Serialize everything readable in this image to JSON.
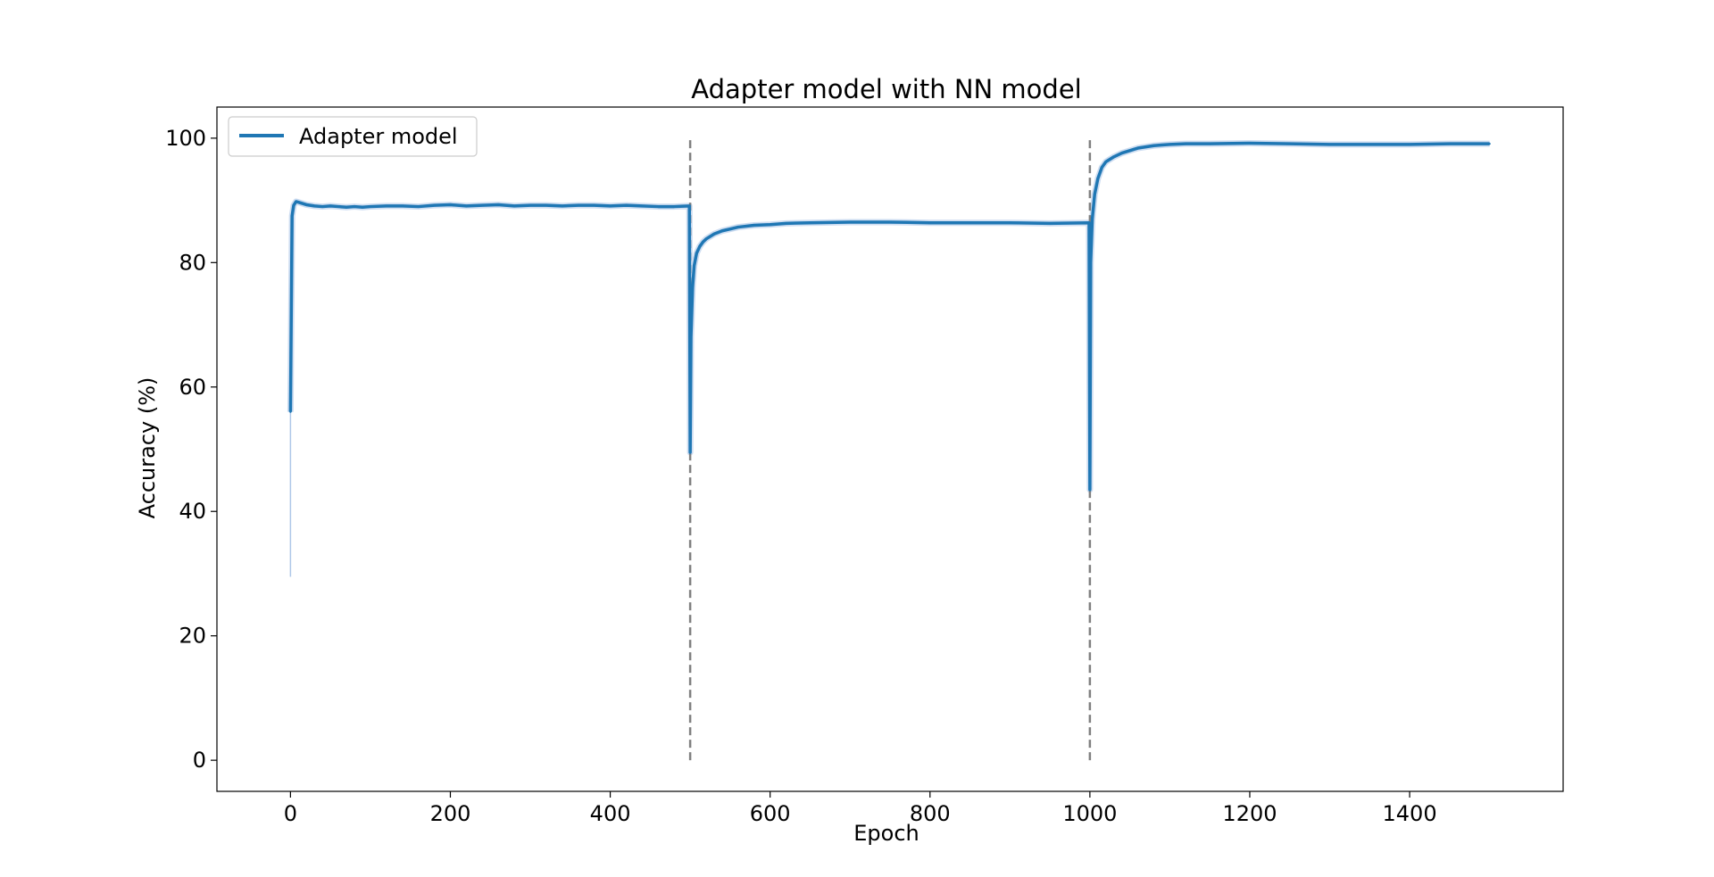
{
  "chart_data": {
    "type": "line",
    "title": "Adapter model with NN model",
    "xlabel": "Epoch",
    "ylabel": "Accuracy (%)",
    "xlim": [
      -92,
      1592
    ],
    "ylim": [
      -5,
      105
    ],
    "xticks": [
      0,
      200,
      400,
      600,
      800,
      1000,
      1200,
      1400
    ],
    "yticks": [
      0,
      20,
      40,
      60,
      80,
      100
    ],
    "grid": false,
    "legend": {
      "position": "top-left",
      "entries": [
        "Adapter model"
      ]
    },
    "colors": {
      "line": "#1f77b4",
      "band": "#aec7e8",
      "vline": "#808080"
    },
    "vlines": [
      {
        "x": 500,
        "y_range": [
          0,
          100
        ],
        "style": "dashed"
      },
      {
        "x": 1000,
        "y_range": [
          0,
          100
        ],
        "style": "dashed"
      }
    ],
    "series": [
      {
        "name": "Adapter model",
        "x": [
          0,
          2,
          4,
          7,
          10,
          15,
          20,
          30,
          40,
          50,
          60,
          70,
          80,
          90,
          100,
          120,
          140,
          160,
          180,
          200,
          220,
          240,
          260,
          280,
          300,
          320,
          340,
          360,
          380,
          400,
          420,
          440,
          460,
          480,
          499,
          500,
          501,
          503,
          505,
          508,
          512,
          516,
          520,
          530,
          540,
          550,
          560,
          580,
          600,
          620,
          650,
          700,
          750,
          800,
          850,
          900,
          950,
          999,
          1000,
          1001,
          1003,
          1006,
          1010,
          1015,
          1020,
          1030,
          1040,
          1050,
          1060,
          1070,
          1080,
          1090,
          1100,
          1120,
          1150,
          1200,
          1250,
          1300,
          1350,
          1400,
          1450,
          1500
        ],
        "y": [
          56,
          87.5,
          89.2,
          89.8,
          89.7,
          89.5,
          89.3,
          89.1,
          89.0,
          89.1,
          89.0,
          88.9,
          89.0,
          88.9,
          89.0,
          89.1,
          89.1,
          89.0,
          89.2,
          89.3,
          89.1,
          89.2,
          89.3,
          89.1,
          89.2,
          89.2,
          89.1,
          89.2,
          89.2,
          89.1,
          89.2,
          89.1,
          89.0,
          89.0,
          89.1,
          49.5,
          68,
          76,
          79.5,
          81.5,
          82.6,
          83.3,
          83.8,
          84.6,
          85.1,
          85.4,
          85.7,
          86.0,
          86.1,
          86.3,
          86.4,
          86.5,
          86.5,
          86.4,
          86.4,
          86.4,
          86.3,
          86.4,
          43.5,
          80,
          87,
          91,
          93.5,
          95.3,
          96.2,
          97.0,
          97.6,
          98.0,
          98.4,
          98.6,
          98.8,
          98.9,
          99.0,
          99.1,
          99.1,
          99.2,
          99.1,
          99.0,
          99.0,
          99.0,
          99.1,
          99.1
        ]
      }
    ],
    "band_lower_at_start": 29.5
  }
}
